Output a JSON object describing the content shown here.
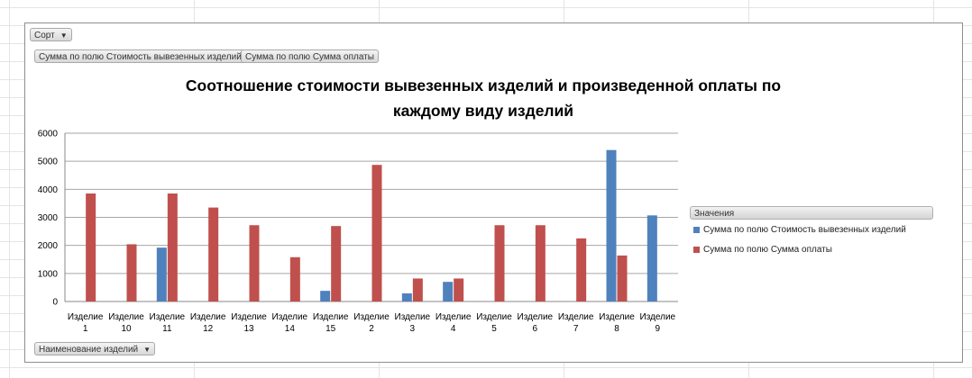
{
  "filters": {
    "sort_label": "Сорт",
    "value_field_1": "Сумма по полю Стоимость вывезенных изделий",
    "value_field_2": "Сумма по полю Сумма оплаты",
    "axis_field": "Наименование изделий"
  },
  "legend": {
    "header": "Значения"
  },
  "colors": {
    "series_1": "#4f81bd",
    "series_2": "#c0504d",
    "grid": "#a6a6a6",
    "axis": "#888888"
  },
  "chart_data": {
    "type": "bar",
    "title_lines": [
      "Соотношение стоимости вывезенных изделий и произведенной оплаты по",
      "каждому виду изделий"
    ],
    "categories": [
      [
        "Изделие",
        "1"
      ],
      [
        "Изделие",
        "10"
      ],
      [
        "Изделие",
        "11"
      ],
      [
        "Изделие",
        "12"
      ],
      [
        "Изделие",
        "13"
      ],
      [
        "Изделие",
        "14"
      ],
      [
        "Изделие",
        "15"
      ],
      [
        "Изделие",
        "2"
      ],
      [
        "Изделие",
        "3"
      ],
      [
        "Изделие",
        "4"
      ],
      [
        "Изделие",
        "5"
      ],
      [
        "Изделие",
        "6"
      ],
      [
        "Изделие",
        "7"
      ],
      [
        "Изделие",
        "8"
      ],
      [
        "Изделие",
        "9"
      ]
    ],
    "series": [
      {
        "name": "Сумма по полю Стоимость вывезенных изделий",
        "values": [
          0,
          0,
          1920,
          0,
          0,
          0,
          380,
          0,
          290,
          700,
          0,
          0,
          0,
          5400,
          3070
        ]
      },
      {
        "name": "Сумма по полю Сумма оплаты",
        "values": [
          3850,
          2040,
          3850,
          3350,
          2720,
          1580,
          2690,
          4870,
          820,
          820,
          2720,
          2720,
          2250,
          1640,
          0
        ]
      }
    ],
    "ylim": [
      0,
      6000
    ],
    "yticks": [
      0,
      1000,
      2000,
      3000,
      4000,
      5000,
      6000
    ],
    "grid": true,
    "legend_position": "right"
  }
}
